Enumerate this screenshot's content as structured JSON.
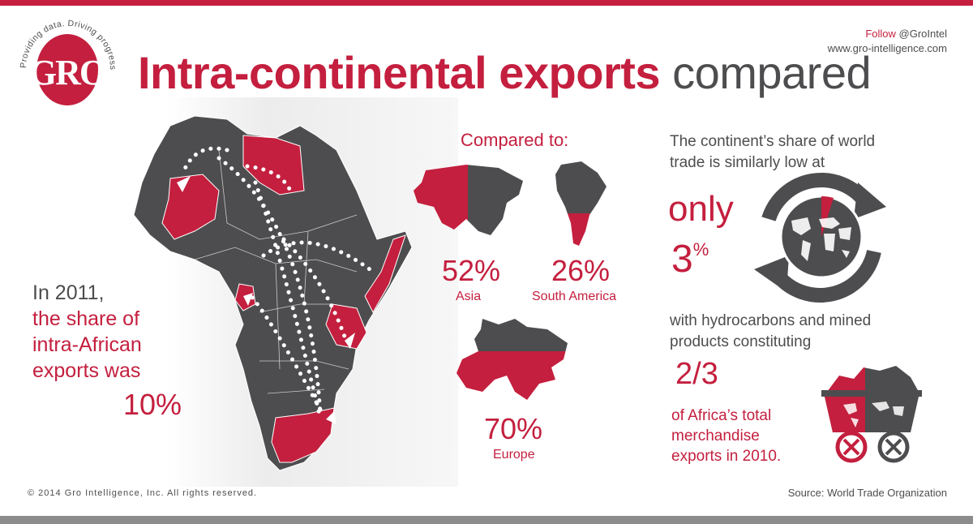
{
  "header": {
    "logo_text": "GRO",
    "logo_tagline": "Providing data. Driving progress",
    "title_part1": "Intra-continental exports",
    "title_part2": "compared",
    "follow_label": "Follow",
    "follow_handle": "@GroIntel",
    "website": "www.gro-intelligence.com"
  },
  "left": {
    "line1": "In 2011,",
    "line2": "the share of",
    "line3": "intra-African",
    "line4": "exports was",
    "value": "10%"
  },
  "comparison": {
    "heading": "Compared to:",
    "items": [
      {
        "region": "Asia",
        "value": "52%"
      },
      {
        "region": "South America",
        "value": "26%"
      },
      {
        "region": "Europe",
        "value": "70%"
      }
    ]
  },
  "right": {
    "text1": "The continent’s share of world trade is similarly low at",
    "only": "only",
    "share_number": "3",
    "share_unit": "%",
    "text2": "with hydrocarbons and mined products constituting",
    "fraction": "2/3",
    "text3": "of Africa’s total merchandise exports in 2010."
  },
  "footer": {
    "copyright": "© 2014 Gro Intelligence, Inc. All rights reserved.",
    "source": "Source: World Trade Organization"
  },
  "colors": {
    "accent": "#c41f3e",
    "dark": "#4d4d4f",
    "map_fill": "#4d4d4f"
  }
}
